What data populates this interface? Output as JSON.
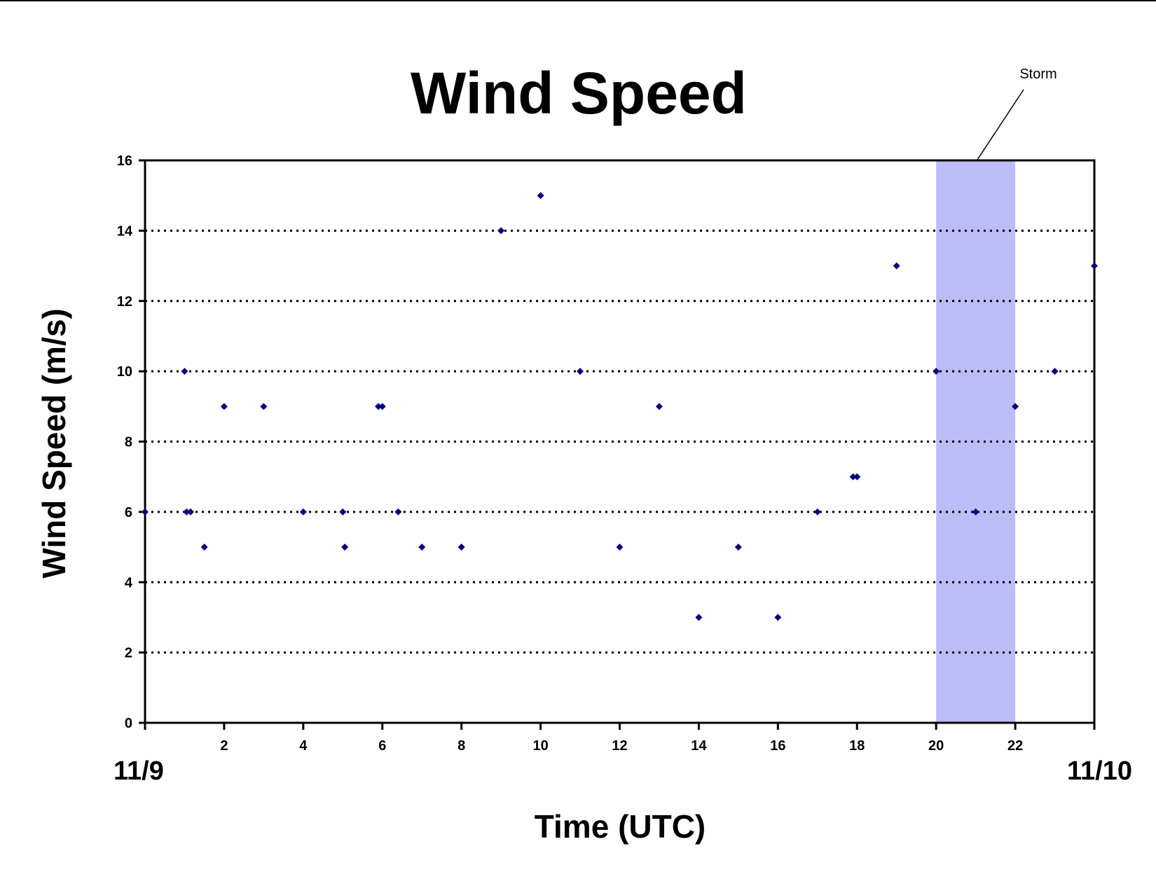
{
  "chart_data": {
    "type": "scatter",
    "title": "Wind Speed",
    "xlabel": "Time (UTC)",
    "ylabel": "Wind Speed (m/s)",
    "xlim": [
      0,
      24
    ],
    "ylim": [
      0,
      16
    ],
    "x_ticks": [
      0,
      2,
      4,
      6,
      8,
      10,
      12,
      14,
      16,
      18,
      20,
      22,
      24
    ],
    "x_tick_labels": [
      "",
      "2",
      "4",
      "6",
      "8",
      "10",
      "12",
      "14",
      "16",
      "18",
      "20",
      "22",
      ""
    ],
    "y_ticks": [
      0,
      2,
      4,
      6,
      8,
      10,
      12,
      14,
      16
    ],
    "y_tick_labels": [
      "0",
      "2",
      "4",
      "6",
      "8",
      "10",
      "12",
      "14",
      "16"
    ],
    "grid": "horizontal dotted",
    "date_labels": {
      "start": "11/9",
      "end": "11/10"
    },
    "marker": "diamond",
    "marker_color": "#00007f",
    "points": [
      {
        "x": 0,
        "y": 6
      },
      {
        "x": 1,
        "y": 10
      },
      {
        "x": 1.05,
        "y": 6
      },
      {
        "x": 1.15,
        "y": 6
      },
      {
        "x": 1.5,
        "y": 5
      },
      {
        "x": 2,
        "y": 9
      },
      {
        "x": 3,
        "y": 9
      },
      {
        "x": 4,
        "y": 6
      },
      {
        "x": 5,
        "y": 6
      },
      {
        "x": 5.05,
        "y": 5
      },
      {
        "x": 5.9,
        "y": 9
      },
      {
        "x": 6,
        "y": 9
      },
      {
        "x": 6.4,
        "y": 6
      },
      {
        "x": 7,
        "y": 5
      },
      {
        "x": 8,
        "y": 5
      },
      {
        "x": 9,
        "y": 14
      },
      {
        "x": 10,
        "y": 15
      },
      {
        "x": 11,
        "y": 10
      },
      {
        "x": 12,
        "y": 5
      },
      {
        "x": 13,
        "y": 9
      },
      {
        "x": 14,
        "y": 3
      },
      {
        "x": 15,
        "y": 5
      },
      {
        "x": 16,
        "y": 3
      },
      {
        "x": 17,
        "y": 6
      },
      {
        "x": 17.9,
        "y": 7
      },
      {
        "x": 18,
        "y": 7
      },
      {
        "x": 19,
        "y": 13
      },
      {
        "x": 20,
        "y": 10
      },
      {
        "x": 21,
        "y": 6
      },
      {
        "x": 22,
        "y": 9
      },
      {
        "x": 23,
        "y": 10
      },
      {
        "x": 24,
        "y": 13
      }
    ],
    "shaded_region": {
      "x_start": 20,
      "x_end": 22,
      "color": "#bcbcf8",
      "label": "Storm"
    }
  }
}
